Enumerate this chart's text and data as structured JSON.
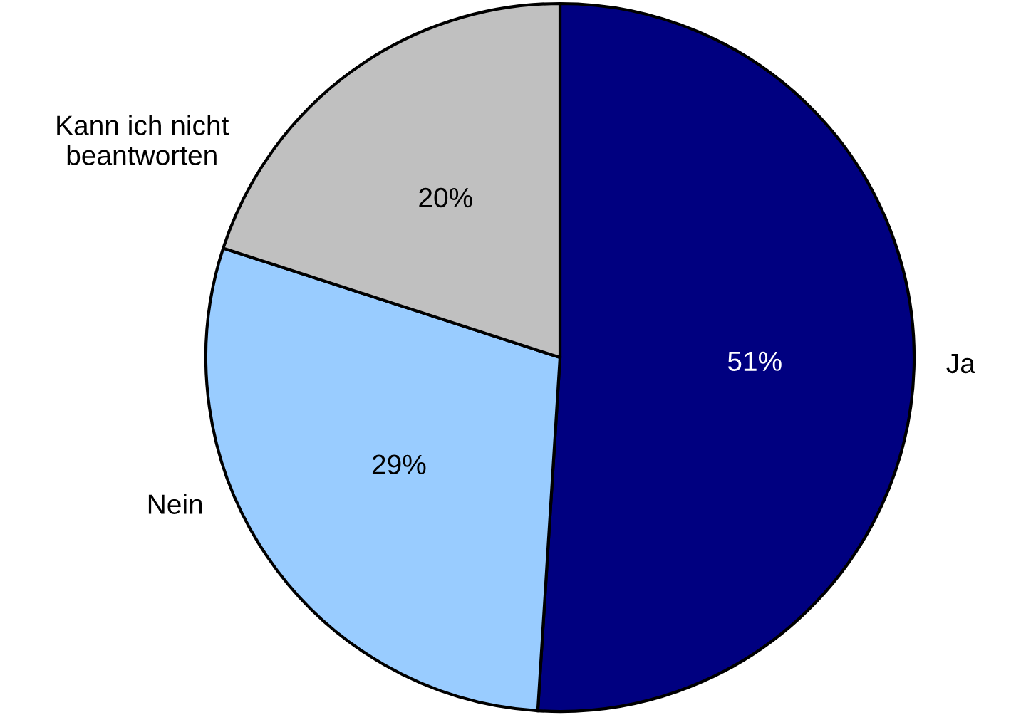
{
  "chart_data": {
    "type": "pie",
    "categories": [
      "Ja",
      "Nein",
      "Kann ich nicht\nbeantworten"
    ],
    "values": [
      51,
      29,
      20
    ],
    "value_labels": [
      "51%",
      "29%",
      "20%"
    ],
    "colors": [
      "#000080",
      "#99ccff",
      "#c0c0c0"
    ],
    "legend": false
  }
}
